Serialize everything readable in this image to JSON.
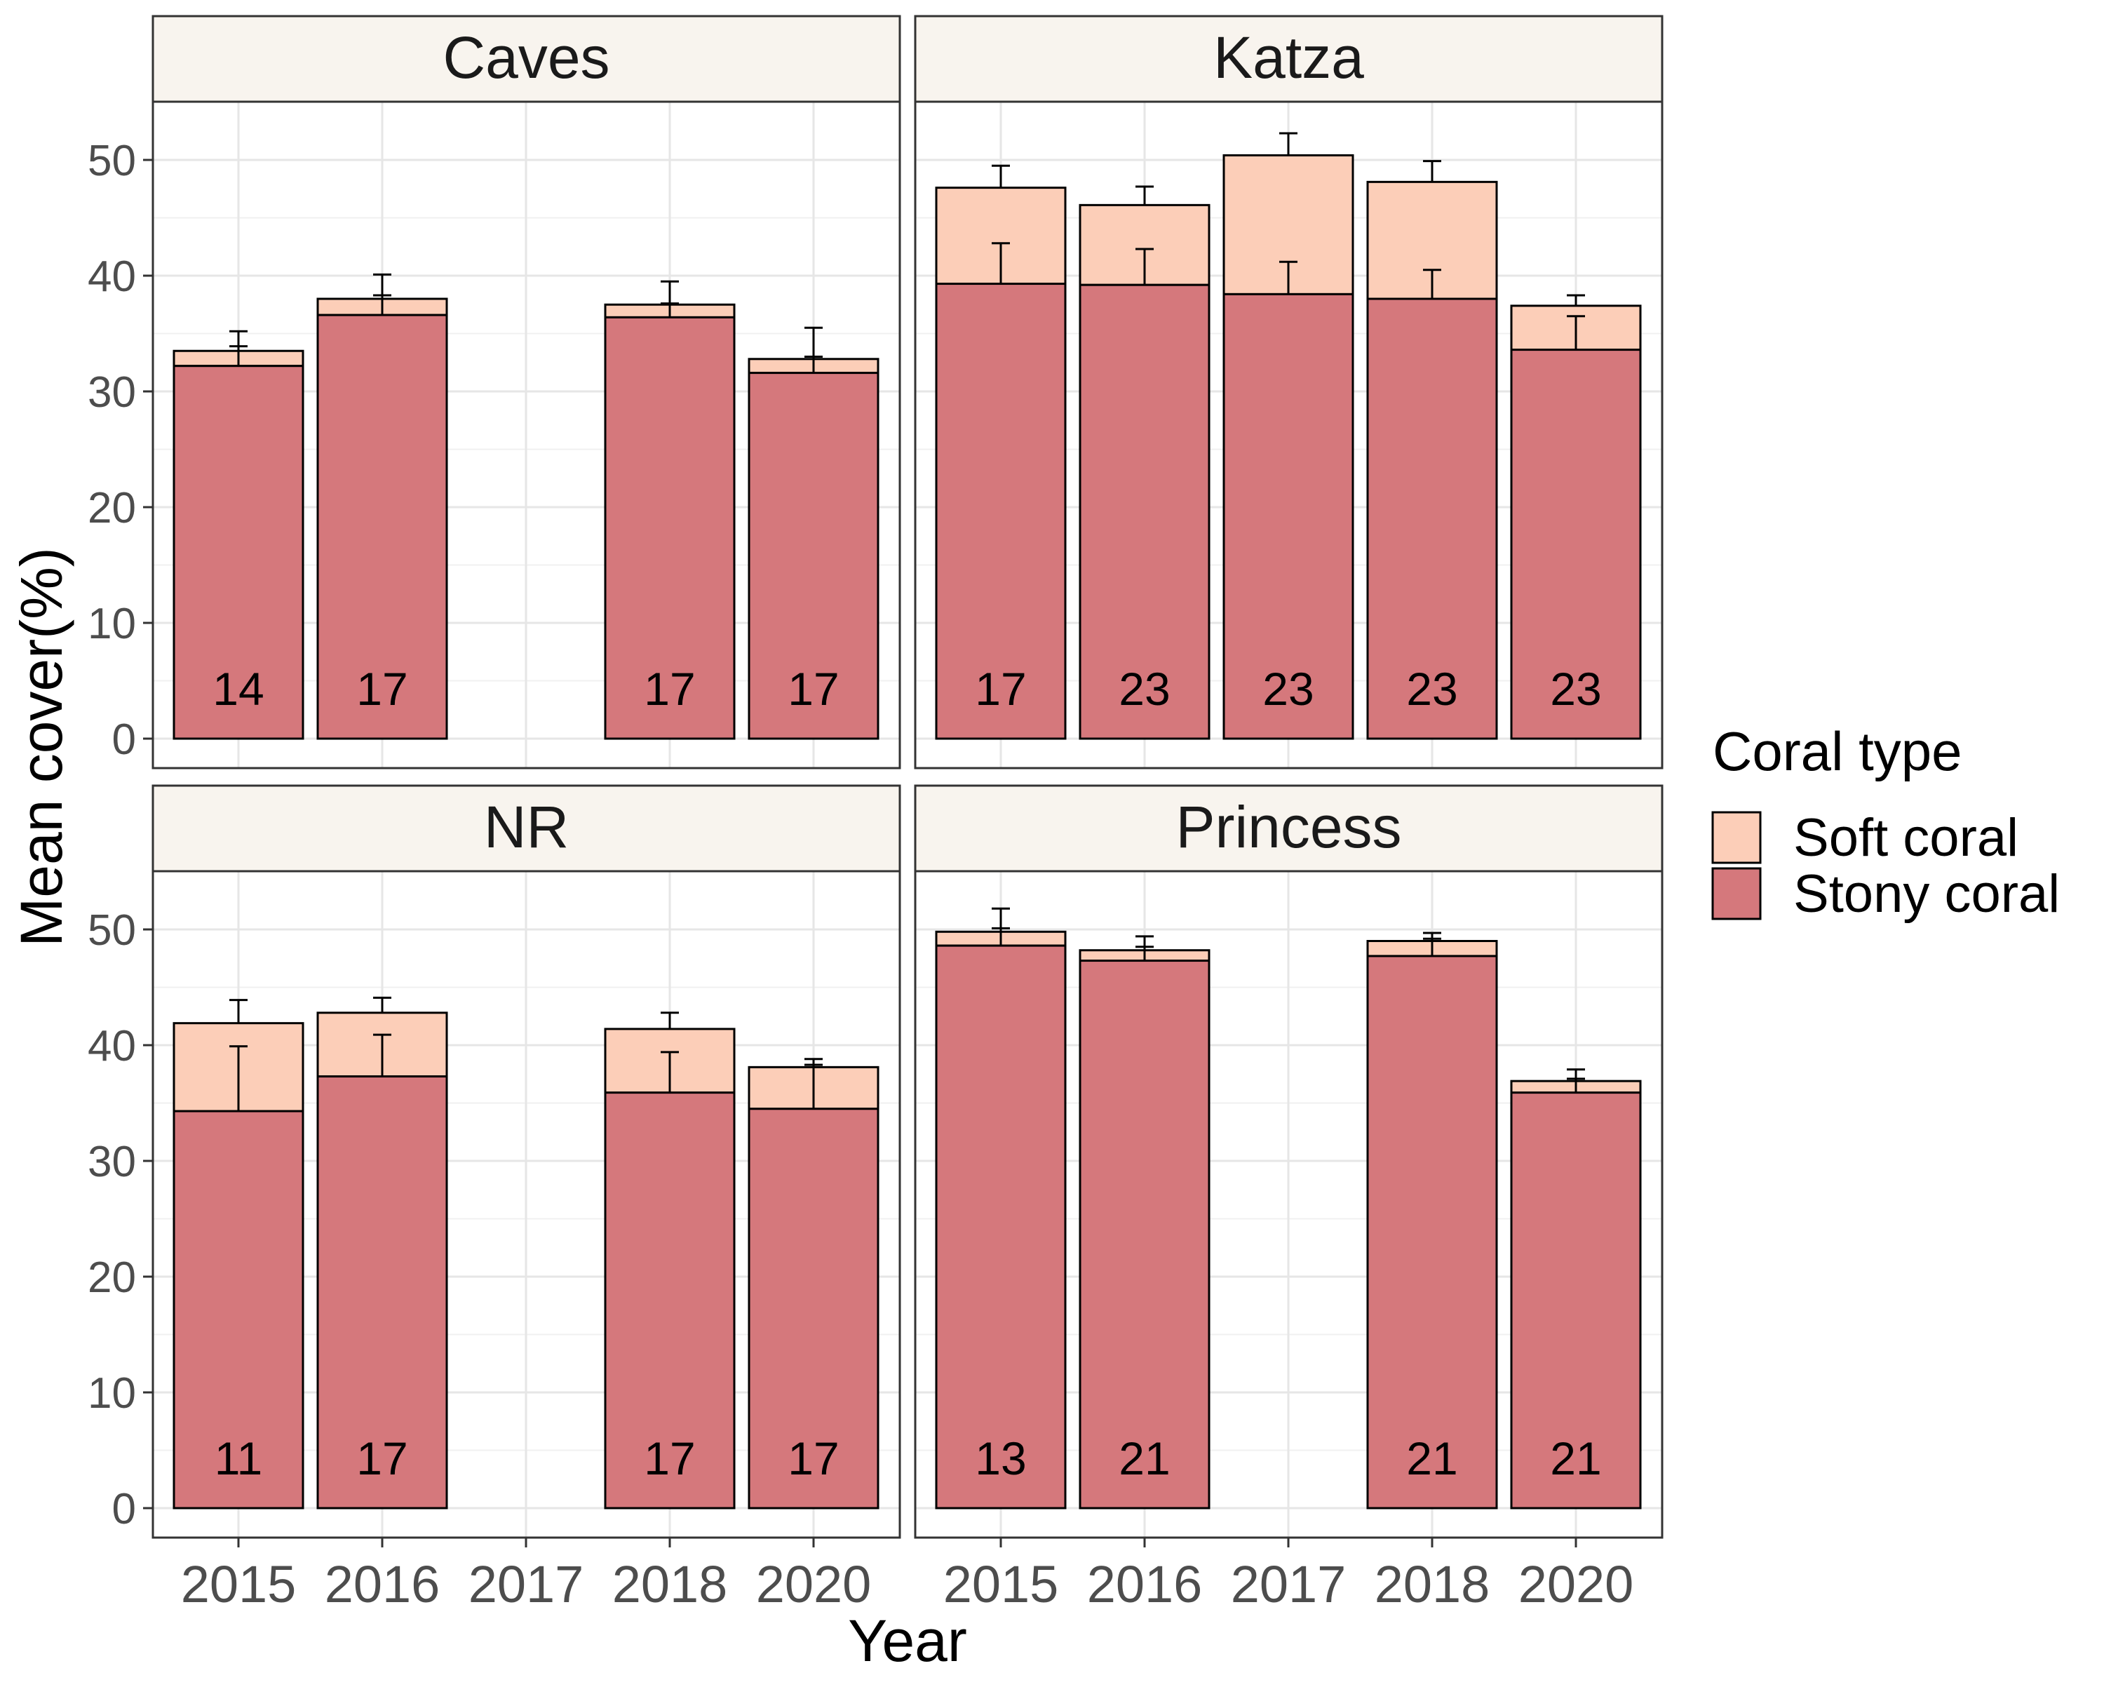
{
  "chart_data": {
    "type": "bar",
    "stacked": true,
    "facet_by": "site",
    "xlabel": "Year",
    "ylabel": "Mean cover(%)",
    "x_ticks": [
      "2015",
      "2016",
      "2017",
      "2018",
      "2020"
    ],
    "y_ticks": [
      0,
      10,
      20,
      30,
      40,
      50
    ],
    "ylim": [
      0,
      55
    ],
    "grid": true,
    "legend": {
      "title": "Coral type",
      "position": "right",
      "items": [
        {
          "label": "Soft coral",
          "color": "#FCCEB8"
        },
        {
          "label": "Stony coral",
          "color": "#D5787C"
        }
      ]
    },
    "colors": {
      "soft_coral": "#FCCEB8",
      "stony_coral": "#D5787C",
      "strip_background": "#F8F4EE",
      "grid": "#E6E6E6"
    },
    "panels": [
      {
        "site": "Caves",
        "bars": [
          {
            "year": "2015",
            "stony": 32.2,
            "stony_err": 1.7,
            "total": 33.5,
            "total_err": 1.7,
            "n": "14"
          },
          {
            "year": "2016",
            "stony": 36.6,
            "stony_err": 1.7,
            "total": 38.0,
            "total_err": 2.1,
            "n": "17"
          },
          {
            "year": "2018",
            "stony": 36.4,
            "stony_err": 1.2,
            "total": 37.5,
            "total_err": 2.0,
            "n": "17"
          },
          {
            "year": "2020",
            "stony": 31.6,
            "stony_err": 1.4,
            "total": 32.8,
            "total_err": 2.7,
            "n": "17"
          }
        ]
      },
      {
        "site": "Katza",
        "bars": [
          {
            "year": "2015",
            "stony": 39.3,
            "stony_err": 3.5,
            "total": 47.6,
            "total_err": 1.9,
            "n": "17"
          },
          {
            "year": "2016",
            "stony": 39.2,
            "stony_err": 3.1,
            "total": 46.1,
            "total_err": 1.6,
            "n": "23"
          },
          {
            "year": "2017",
            "stony": 38.4,
            "stony_err": 2.8,
            "total": 50.4,
            "total_err": 1.9,
            "n": "23"
          },
          {
            "year": "2018",
            "stony": 38.0,
            "stony_err": 2.5,
            "total": 48.1,
            "total_err": 1.8,
            "n": "23"
          },
          {
            "year": "2020",
            "stony": 33.6,
            "stony_err": 2.9,
            "total": 37.4,
            "total_err": 0.9,
            "n": "23"
          }
        ]
      },
      {
        "site": "NR",
        "bars": [
          {
            "year": "2015",
            "stony": 34.3,
            "stony_err": 5.6,
            "total": 41.9,
            "total_err": 2.0,
            "n": "11"
          },
          {
            "year": "2016",
            "stony": 37.3,
            "stony_err": 3.6,
            "total": 42.8,
            "total_err": 1.3,
            "n": "17"
          },
          {
            "year": "2018",
            "stony": 35.9,
            "stony_err": 3.5,
            "total": 41.4,
            "total_err": 1.4,
            "n": "17"
          },
          {
            "year": "2020",
            "stony": 34.5,
            "stony_err": 3.8,
            "total": 38.1,
            "total_err": 0.7,
            "n": "17"
          }
        ]
      },
      {
        "site": "Princess",
        "bars": [
          {
            "year": "2015",
            "stony": 48.6,
            "stony_err": 1.5,
            "total": 49.8,
            "total_err": 2.0,
            "n": "13"
          },
          {
            "year": "2016",
            "stony": 47.3,
            "stony_err": 1.2,
            "total": 48.2,
            "total_err": 1.2,
            "n": "21"
          },
          {
            "year": "2018",
            "stony": 47.7,
            "stony_err": 1.5,
            "total": 49.0,
            "total_err": 0.7,
            "n": "21"
          },
          {
            "year": "2020",
            "stony": 35.9,
            "stony_err": 1.2,
            "total": 36.9,
            "total_err": 1.0,
            "n": "21"
          }
        ]
      }
    ]
  }
}
